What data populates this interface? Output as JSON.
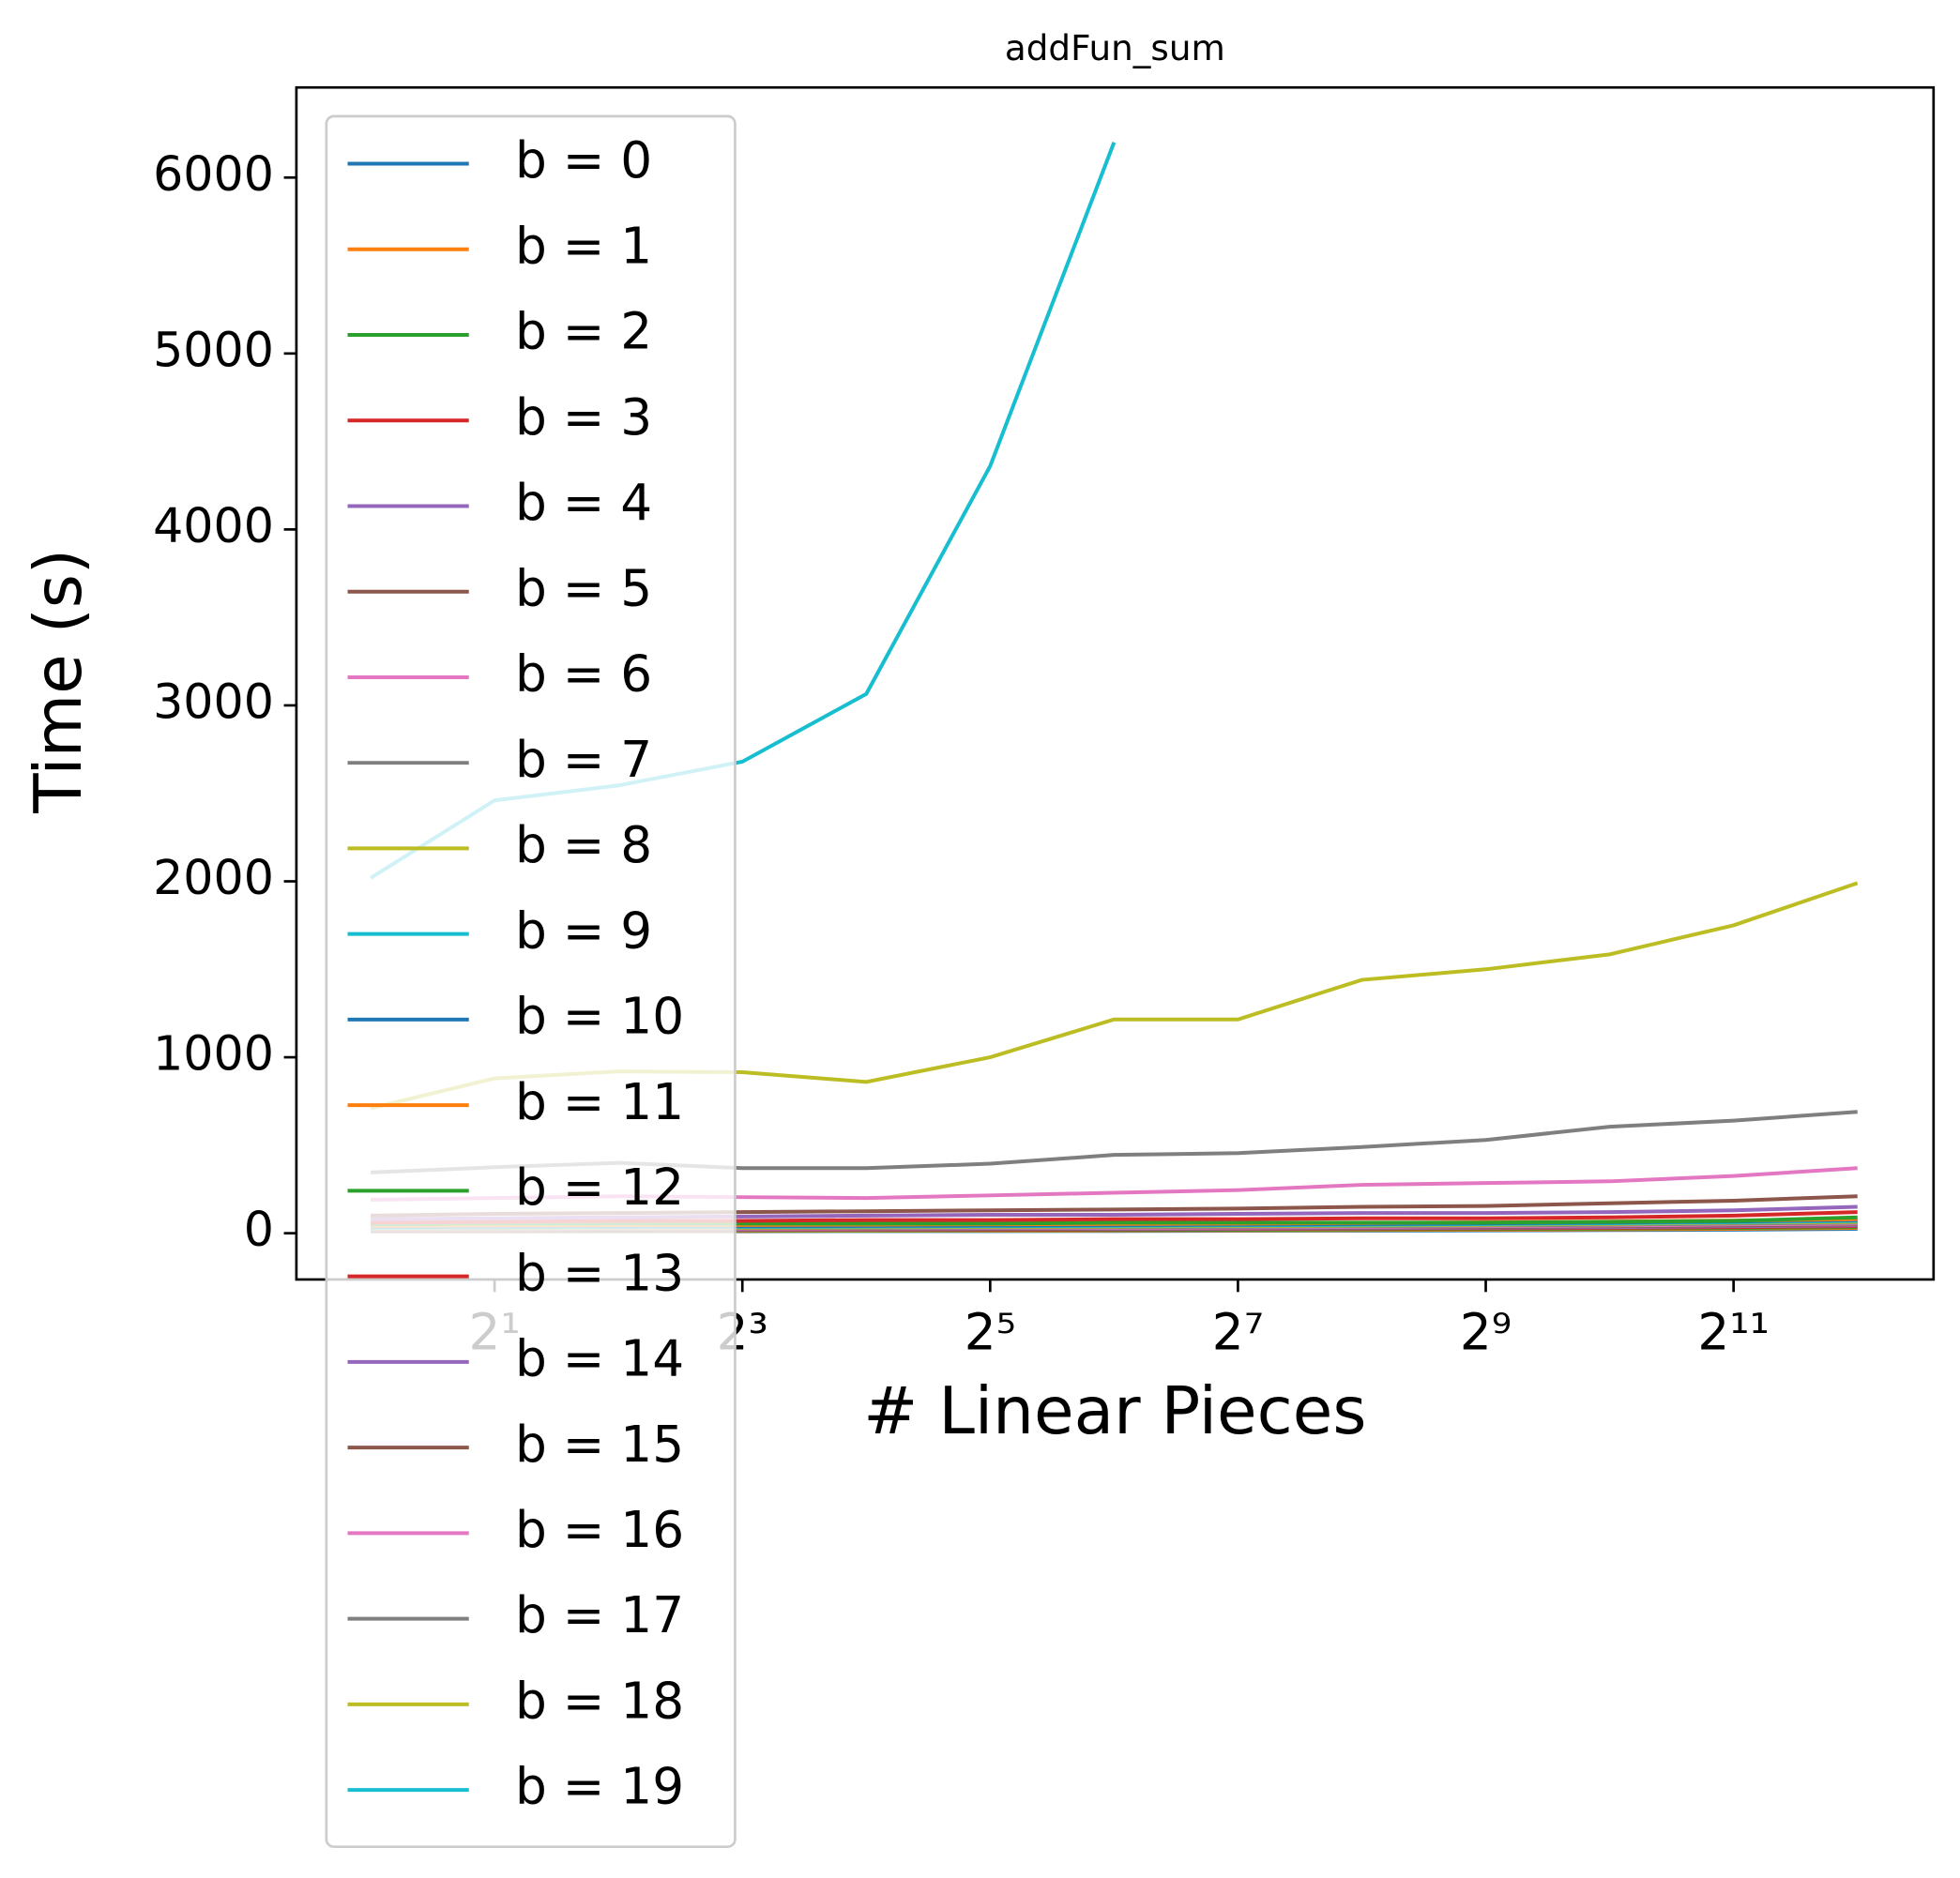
{
  "chart_data": {
    "type": "line",
    "title": "addFun_sum",
    "xlabel": "# Linear Pieces",
    "ylabel": "Time (s)",
    "xscale": "log",
    "xscale_base": 2,
    "legend": "upper left",
    "grid": false,
    "x": [
      1,
      2,
      4,
      8,
      16,
      32,
      64,
      128,
      256,
      512,
      1024,
      2048,
      4096
    ],
    "xlim": [
      0.66,
      6270
    ],
    "ylim": [
      -263,
      6512
    ],
    "xticks": [
      {
        "value": 2,
        "label": "2¹"
      },
      {
        "value": 8,
        "label": "2³"
      },
      {
        "value": 32,
        "label": "2⁵"
      },
      {
        "value": 128,
        "label": "2⁷"
      },
      {
        "value": 512,
        "label": "2⁹"
      },
      {
        "value": 2048,
        "label": "2¹¹"
      }
    ],
    "yticks": [
      0,
      1000,
      2000,
      3000,
      4000,
      5000,
      6000
    ],
    "series": [
      {
        "name": "b = 0",
        "color": "#1f77b4",
        "values": [
          10,
          10,
          11,
          11,
          12,
          12,
          13,
          14,
          15,
          16,
          18,
          20,
          25
        ]
      },
      {
        "name": "b = 1",
        "color": "#ff7f0e",
        "values": [
          12,
          12,
          13,
          13,
          14,
          15,
          16,
          17,
          18,
          20,
          22,
          25,
          30
        ]
      },
      {
        "name": "b = 2",
        "color": "#2ca02c",
        "values": [
          14,
          15,
          15,
          16,
          17,
          18,
          19,
          20,
          22,
          24,
          27,
          30,
          35
        ]
      },
      {
        "name": "b = 3",
        "color": "#d62728",
        "values": [
          16,
          17,
          18,
          19,
          20,
          21,
          22,
          24,
          26,
          28,
          31,
          35,
          40
        ]
      },
      {
        "name": "b = 4",
        "color": "#9467bd",
        "values": [
          18,
          19,
          20,
          21,
          22,
          24,
          25,
          27,
          29,
          32,
          35,
          40,
          45
        ]
      },
      {
        "name": "b = 5",
        "color": "#8c564b",
        "values": [
          20,
          21,
          22,
          24,
          25,
          27,
          28,
          30,
          33,
          36,
          40,
          45,
          50
        ]
      },
      {
        "name": "b = 6",
        "color": "#e377c2",
        "values": [
          22,
          23,
          25,
          26,
          28,
          30,
          31,
          33,
          36,
          40,
          44,
          50,
          55
        ]
      },
      {
        "name": "b = 7",
        "color": "#7f7f7f",
        "values": [
          25,
          26,
          28,
          29,
          31,
          33,
          35,
          37,
          40,
          44,
          48,
          55,
          60
        ]
      },
      {
        "name": "b = 8",
        "color": "#bcbd22",
        "values": [
          28,
          29,
          31,
          32,
          34,
          36,
          38,
          41,
          44,
          48,
          53,
          60,
          65
        ]
      },
      {
        "name": "b = 9",
        "color": "#17becf",
        "values": [
          32,
          33,
          35,
          36,
          38,
          40,
          42,
          45,
          48,
          52,
          57,
          63,
          70
        ]
      },
      {
        "name": "b = 10",
        "color": "#1f77b4",
        "values": [
          36,
          37,
          39,
          40,
          42,
          44,
          46,
          49,
          52,
          56,
          61,
          67,
          75
        ]
      },
      {
        "name": "b = 11",
        "color": "#ff7f0e",
        "values": [
          42,
          44,
          46,
          47,
          49,
          51,
          53,
          55,
          58,
          62,
          66,
          72,
          80
        ]
      },
      {
        "name": "b = 12",
        "color": "#2ca02c",
        "values": [
          50,
          55,
          55,
          55,
          55,
          55,
          60,
          60,
          60,
          60,
          65,
          70,
          90
        ]
      },
      {
        "name": "b = 13",
        "color": "#d62728",
        "values": [
          60,
          65,
          70,
          70,
          75,
          75,
          80,
          80,
          85,
          85,
          90,
          100,
          120
        ]
      },
      {
        "name": "b = 14",
        "color": "#9467bd",
        "values": [
          80,
          85,
          90,
          95,
          100,
          105,
          105,
          110,
          115,
          115,
          120,
          130,
          150
        ]
      },
      {
        "name": "b = 15",
        "color": "#8c564b",
        "values": [
          100,
          110,
          115,
          120,
          125,
          130,
          135,
          140,
          150,
          155,
          170,
          185,
          210
        ]
      },
      {
        "name": "b = 16",
        "color": "#e377c2",
        "values": [
          190,
          200,
          210,
          205,
          200,
          215,
          230,
          245,
          275,
          285,
          295,
          325,
          370
        ]
      },
      {
        "name": "b = 17",
        "color": "#7f7f7f",
        "values": [
          345,
          375,
          400,
          370,
          370,
          395,
          445,
          455,
          490,
          530,
          605,
          640,
          690
        ]
      },
      {
        "name": "b = 18",
        "color": "#bcbd22",
        "values": [
          710,
          880,
          920,
          915,
          860,
          1000,
          1215,
          1215,
          1440,
          1500,
          1585,
          1750,
          1990
        ]
      },
      {
        "name": "b = 19",
        "color": "#17becf",
        "values": [
          2019,
          2460,
          2545,
          2680,
          3065,
          4360,
          6200,
          null,
          null,
          null,
          null,
          null,
          null
        ]
      }
    ]
  }
}
